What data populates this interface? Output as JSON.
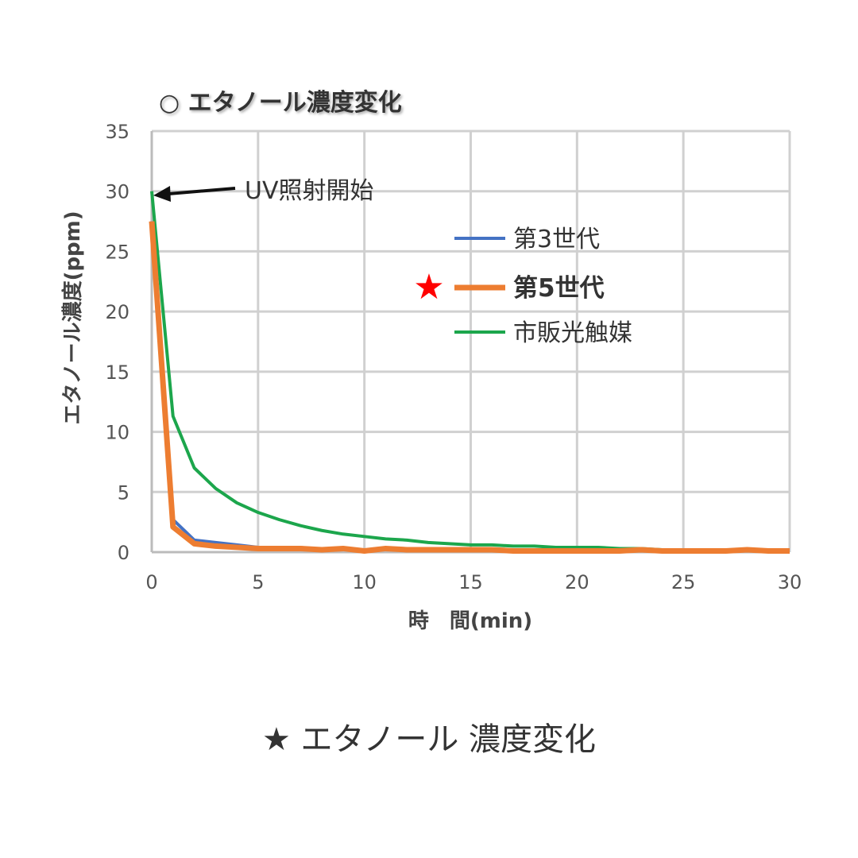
{
  "chart_data": {
    "type": "line",
    "title": "○ エタノール濃度変化",
    "xlabel": "時　間(min)",
    "ylabel": "エタノール濃度(ppm)",
    "xlim": [
      0,
      30
    ],
    "ylim": [
      0,
      35
    ],
    "xticks": [
      0,
      5,
      10,
      15,
      20,
      25,
      30
    ],
    "yticks": [
      0,
      5,
      10,
      15,
      20,
      25,
      30,
      35
    ],
    "grid": true,
    "legend_placement": "top-right",
    "annotation": "UV照射開始",
    "x": [
      0,
      1,
      2,
      3,
      4,
      5,
      6,
      7,
      8,
      9,
      10,
      11,
      12,
      13,
      14,
      15,
      16,
      17,
      18,
      19,
      20,
      21,
      22,
      23,
      24,
      25,
      26,
      27,
      28,
      29,
      30
    ],
    "series": [
      {
        "name": "第3世代",
        "color": "#4472c4",
        "values": [
          27.5,
          2.7,
          1.0,
          0.8,
          0.6,
          0.4,
          0.3,
          0.3,
          0.2,
          0.2,
          0.2,
          0.2,
          0.2,
          0.1,
          0.1,
          0.1,
          0.1,
          0.1,
          0.1,
          0.1,
          0.1,
          0.1,
          0.1,
          0.1,
          0.1,
          0.1,
          0.1,
          0.1,
          0.1,
          0.1,
          0.1
        ]
      },
      {
        "name": "第5世代",
        "color": "#ed7d31",
        "highlighted": true,
        "values": [
          27.5,
          2.1,
          0.7,
          0.5,
          0.4,
          0.3,
          0.3,
          0.3,
          0.2,
          0.3,
          0.1,
          0.3,
          0.2,
          0.2,
          0.2,
          0.2,
          0.2,
          0.1,
          0.1,
          0.1,
          0.1,
          0.1,
          0.1,
          0.2,
          0.1,
          0.1,
          0.1,
          0.1,
          0.2,
          0.1,
          0.1
        ]
      },
      {
        "name": "市販光触媒",
        "color": "#1ca64c",
        "values": [
          30,
          11.3,
          7.0,
          5.3,
          4.1,
          3.3,
          2.7,
          2.2,
          1.8,
          1.5,
          1.3,
          1.1,
          1.0,
          0.8,
          0.7,
          0.6,
          0.6,
          0.5,
          0.5,
          0.4,
          0.4,
          0.4,
          0.3,
          0.3,
          0.2,
          0.2,
          0.2,
          0.2,
          0.1,
          0.1,
          0.1
        ]
      }
    ]
  },
  "caption": "★ エタノール 濃度変化",
  "highlight_marker_color": "#ff0000"
}
